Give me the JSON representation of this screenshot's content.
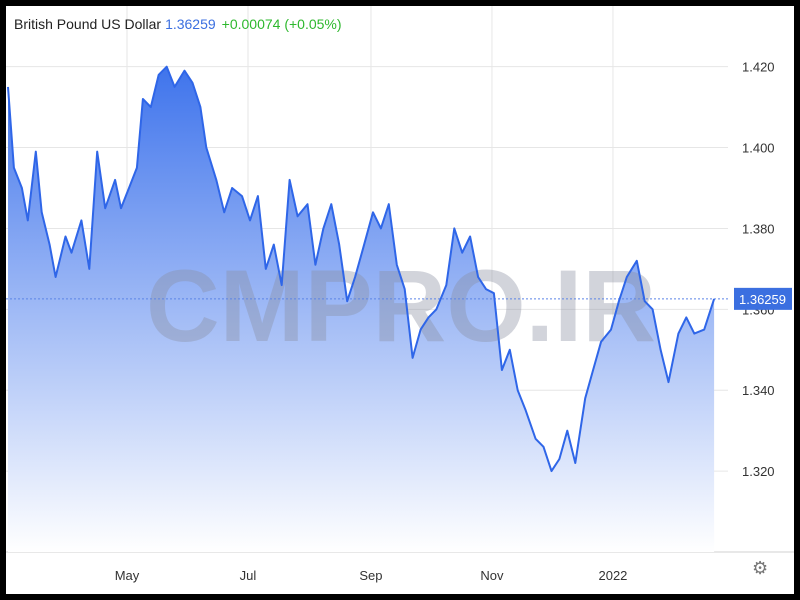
{
  "header": {
    "name": "British Pound US Dollar",
    "price": "1.36259",
    "change": "+0.00074 (+0.05%)"
  },
  "watermark": "CMPRO.IR",
  "settings_icon": "gear-icon",
  "colors": {
    "line": "#2f66e8",
    "area_top": "#3f74ec",
    "area_bottom": "#ffffff",
    "price_tag": "#3b6fe0",
    "change": "#2eb82e"
  },
  "chart_data": {
    "type": "area",
    "title": "British Pound US Dollar",
    "xlabel": "",
    "ylabel": "",
    "ylim": [
      1.3,
      1.435
    ],
    "yticks": [
      1.32,
      1.34,
      1.36,
      1.38,
      1.4,
      1.42
    ],
    "ytick_labels": [
      "1.320",
      "1.340",
      "1.360",
      "1.380",
      "1.400",
      "1.420"
    ],
    "xlim": [
      "2021-03-01",
      "2022-02-28"
    ],
    "xticks": [
      {
        "label": "May",
        "date": "2021-05-01"
      },
      {
        "label": "Jul",
        "date": "2021-07-01"
      },
      {
        "label": "Sep",
        "date": "2021-09-01"
      },
      {
        "label": "Nov",
        "date": "2021-11-01"
      },
      {
        "label": "2022",
        "date": "2022-01-01"
      }
    ],
    "current_value": 1.36259,
    "current_label": "1.36259",
    "grid": true,
    "series": [
      {
        "x": [
          "2021-03-02",
          "2021-03-05",
          "2021-03-09",
          "2021-03-12",
          "2021-03-16",
          "2021-03-19",
          "2021-03-23",
          "2021-03-26",
          "2021-03-31",
          "2021-04-03",
          "2021-04-08",
          "2021-04-12",
          "2021-04-16",
          "2021-04-20",
          "2021-04-25",
          "2021-04-28",
          "2021-05-02",
          "2021-05-06",
          "2021-05-09",
          "2021-05-13",
          "2021-05-17",
          "2021-05-21",
          "2021-05-25",
          "2021-05-30",
          "2021-06-03",
          "2021-06-07",
          "2021-06-10",
          "2021-06-15",
          "2021-06-19",
          "2021-06-23",
          "2021-06-28",
          "2021-07-02",
          "2021-07-06",
          "2021-07-10",
          "2021-07-14",
          "2021-07-18",
          "2021-07-22",
          "2021-07-26",
          "2021-07-31",
          "2021-08-04",
          "2021-08-08",
          "2021-08-12",
          "2021-08-16",
          "2021-08-20",
          "2021-08-24",
          "2021-08-28",
          "2021-09-02",
          "2021-09-06",
          "2021-09-10",
          "2021-09-14",
          "2021-09-18",
          "2021-09-22",
          "2021-09-26",
          "2021-09-30",
          "2021-10-04",
          "2021-10-09",
          "2021-10-13",
          "2021-10-17",
          "2021-10-21",
          "2021-10-25",
          "2021-10-29",
          "2021-11-02",
          "2021-11-06",
          "2021-11-10",
          "2021-11-14",
          "2021-11-18",
          "2021-11-23",
          "2021-11-27",
          "2021-12-01",
          "2021-12-05",
          "2021-12-09",
          "2021-12-13",
          "2021-12-18",
          "2021-12-22",
          "2021-12-26",
          "2021-12-31",
          "2022-01-04",
          "2022-01-08",
          "2022-01-13",
          "2022-01-17",
          "2022-01-21",
          "2022-01-25",
          "2022-01-29",
          "2022-02-03",
          "2022-02-07",
          "2022-02-11",
          "2022-02-16",
          "2022-02-21"
        ],
        "values": [
          1.415,
          1.395,
          1.39,
          1.382,
          1.399,
          1.384,
          1.376,
          1.368,
          1.378,
          1.374,
          1.382,
          1.37,
          1.399,
          1.385,
          1.392,
          1.385,
          1.39,
          1.395,
          1.412,
          1.41,
          1.418,
          1.42,
          1.415,
          1.419,
          1.416,
          1.41,
          1.4,
          1.392,
          1.384,
          1.39,
          1.388,
          1.382,
          1.388,
          1.37,
          1.376,
          1.366,
          1.392,
          1.383,
          1.386,
          1.371,
          1.38,
          1.386,
          1.376,
          1.362,
          1.368,
          1.375,
          1.384,
          1.38,
          1.386,
          1.371,
          1.365,
          1.348,
          1.355,
          1.358,
          1.36,
          1.366,
          1.38,
          1.374,
          1.378,
          1.368,
          1.365,
          1.364,
          1.345,
          1.35,
          1.34,
          1.335,
          1.328,
          1.326,
          1.32,
          1.323,
          1.33,
          1.322,
          1.338,
          1.345,
          1.352,
          1.355,
          1.362,
          1.368,
          1.372,
          1.362,
          1.36,
          1.35,
          1.342,
          1.354,
          1.358,
          1.354,
          1.355,
          1.36259
        ]
      }
    ]
  }
}
